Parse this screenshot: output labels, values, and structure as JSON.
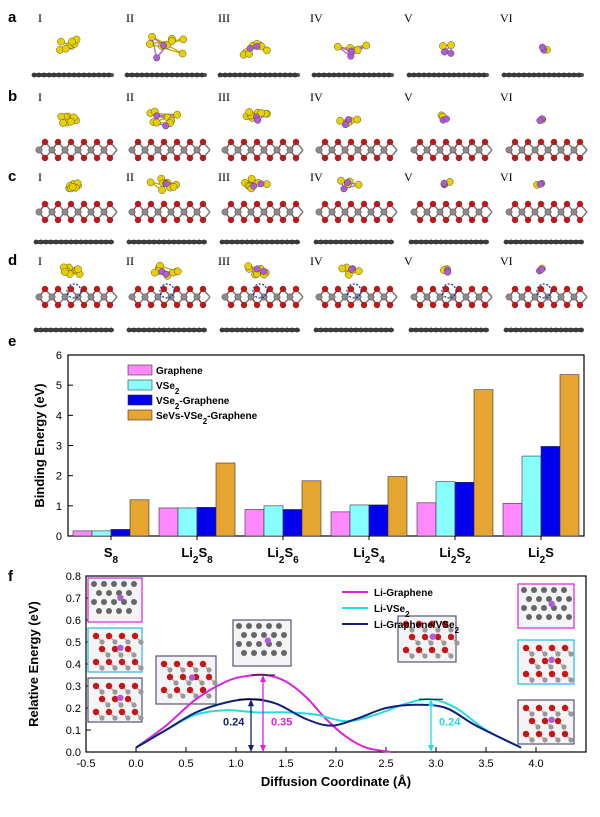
{
  "panels": {
    "a": {
      "label": "a",
      "numerals": [
        "I",
        "II",
        "III",
        "IV",
        "V",
        "VI"
      ]
    },
    "b": {
      "label": "b",
      "numerals": [
        "I",
        "II",
        "III",
        "IV",
        "V",
        "VI"
      ]
    },
    "c": {
      "label": "c",
      "numerals": [
        "I",
        "II",
        "III",
        "IV",
        "V",
        "VI"
      ]
    },
    "d": {
      "label": "d",
      "numerals": [
        "I",
        "II",
        "III",
        "IV",
        "V",
        "VI"
      ]
    }
  },
  "colors": {
    "sulfur": "#e8d000",
    "lithium": "#b05cd8",
    "oxygen": "#c81414",
    "vanadium": "#8a8a8a",
    "carbon": "#3a3a3a",
    "vacancy": "#1a2ea0"
  },
  "chart_data": [
    {
      "panel": "e",
      "type": "bar",
      "title": "",
      "xlabel": "",
      "ylabel": "Binding Energy (eV)",
      "ylim": [
        0,
        6
      ],
      "yticks": [
        "0",
        "1",
        "2",
        "3",
        "4",
        "5",
        "6"
      ],
      "categories": [
        "S8",
        "Li2S8",
        "Li2S6",
        "Li2S4",
        "Li2S2",
        "Li2S"
      ],
      "legend_position": "top-left",
      "series": [
        {
          "name": "Graphene",
          "color": "#ff88ff",
          "values": [
            0.17,
            0.93,
            0.88,
            0.8,
            1.1,
            1.08
          ]
        },
        {
          "name": "VSe2",
          "color": "#88ffff",
          "values": [
            0.17,
            0.93,
            1.0,
            1.03,
            1.8,
            2.65
          ]
        },
        {
          "name": "VSe2-Graphene",
          "color": "#0000ee",
          "values": [
            0.22,
            0.95,
            0.88,
            1.03,
            1.78,
            2.97
          ]
        },
        {
          "name": "SeVs-VSe2-Graphene",
          "color": "#e6a530",
          "values": [
            1.2,
            2.42,
            1.83,
            1.97,
            4.85,
            5.35
          ]
        }
      ]
    },
    {
      "panel": "f",
      "type": "line",
      "title": "",
      "xlabel": "Diffusion Coordinate (Å)",
      "ylabel": "Relative Energy (eV)",
      "xlim": [
        -0.5,
        4.5
      ],
      "ylim": [
        0,
        0.8
      ],
      "xticks": [
        "-0.5",
        "0.0",
        "0.5",
        "1.0",
        "1.5",
        "2.0",
        "2.5",
        "3.0",
        "3.5",
        "4.0"
      ],
      "yticks": [
        "0.0",
        "0.1",
        "0.2",
        "0.3",
        "0.4",
        "0.5",
        "0.6",
        "0.7",
        "0.8"
      ],
      "legend_position": "top-right",
      "series": [
        {
          "name": "Li-Graphene",
          "color": "#dd22dd",
          "x": [
            0,
            0.3,
            0.6,
            0.9,
            1.1,
            1.3,
            1.5,
            1.7,
            1.9,
            2.1,
            2.3,
            2.55
          ],
          "y": [
            0.02,
            0.12,
            0.24,
            0.32,
            0.345,
            0.35,
            0.32,
            0.25,
            0.15,
            0.07,
            0.02,
            0.0
          ]
        },
        {
          "name": "Li-VSe2",
          "color": "#22dddd",
          "x": [
            0,
            0.3,
            0.6,
            0.9,
            1.2,
            1.5,
            1.8,
            2.1,
            2.4,
            2.7,
            2.95,
            3.2,
            3.5,
            3.85
          ],
          "y": [
            0.02,
            0.1,
            0.17,
            0.19,
            0.18,
            0.18,
            0.17,
            0.14,
            0.17,
            0.22,
            0.24,
            0.2,
            0.1,
            0.02
          ]
        },
        {
          "name": "Li-Graphene/VSe2",
          "color": "#10207a",
          "x": [
            0,
            0.3,
            0.6,
            0.9,
            1.15,
            1.4,
            1.7,
            1.95,
            2.2,
            2.5,
            2.8,
            3.1,
            3.4,
            3.85
          ],
          "y": [
            0.02,
            0.1,
            0.18,
            0.225,
            0.24,
            0.22,
            0.15,
            0.12,
            0.15,
            0.2,
            0.215,
            0.2,
            0.12,
            0.02
          ]
        }
      ],
      "annotations": [
        {
          "text": "0.24",
          "color": "#10207a",
          "x": 1.15,
          "y_from": 0,
          "y_to": 0.24
        },
        {
          "text": "0.35",
          "color": "#dd22dd",
          "x": 1.27,
          "y_from": 0,
          "y_to": 0.35
        },
        {
          "text": "0.24",
          "color": "#22dddd",
          "x": 2.95,
          "y_from": 0,
          "y_to": 0.24
        }
      ]
    }
  ],
  "panel_labels": {
    "e": "e",
    "f": "f"
  }
}
